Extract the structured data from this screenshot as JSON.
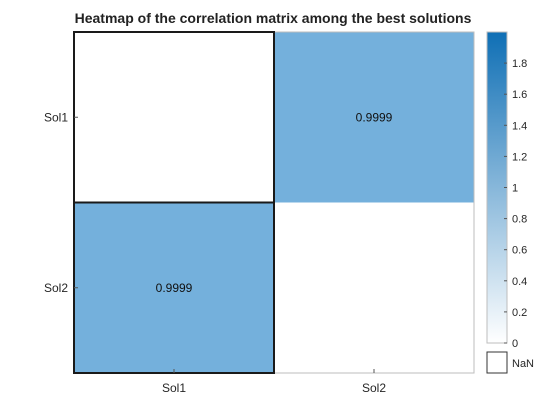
{
  "chart_data": {
    "type": "heatmap",
    "title": "Heatmap of the correlation matrix among the best solutions",
    "x_labels": [
      "Sol1",
      "Sol2"
    ],
    "y_labels": [
      "Sol1",
      "Sol2"
    ],
    "values": [
      [
        null,
        0.9999
      ],
      [
        0.9999,
        null
      ]
    ],
    "cell_labels": [
      [
        "",
        "0.9999"
      ],
      [
        "0.9999",
        ""
      ]
    ],
    "colorbar": {
      "range": [
        0,
        2
      ],
      "ticks": [
        0,
        0.2,
        0.4,
        0.6,
        0.8,
        1,
        1.2,
        1.4,
        1.6,
        1.8
      ],
      "tick_labels": [
        "0",
        "0.2",
        "0.4",
        "0.6",
        "0.8",
        "1",
        "1.2",
        "1.4",
        "1.6",
        "1.8"
      ],
      "low_color": "#ffffff",
      "high_color": "#0f6fb5"
    },
    "nan_label": "NaN",
    "cell_color": "#74b0dc",
    "nan_color": "#ffffff"
  }
}
